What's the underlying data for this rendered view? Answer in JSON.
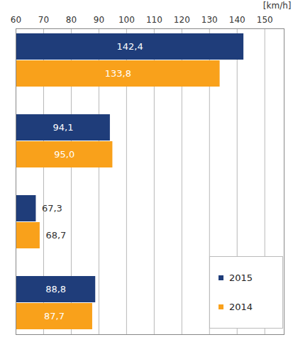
{
  "chart_data": {
    "type": "bar",
    "orientation": "horizontal",
    "categories": [
      null,
      null,
      null,
      null
    ],
    "xlabel": "[km/h]",
    "xlim": [
      60,
      157
    ],
    "xticks": [
      60,
      70,
      80,
      90,
      100,
      110,
      120,
      130,
      140,
      150
    ],
    "grid": true,
    "legend": "bottom-right",
    "data_labels": true,
    "series": [
      {
        "name": "2015",
        "color": "#1f3d7a",
        "values": [
          142.4,
          94.1,
          67.3,
          88.8
        ],
        "value_labels": [
          "142,4",
          "94,1",
          "67,3",
          "88,8"
        ]
      },
      {
        "name": "2014",
        "color": "#f9a11b",
        "values": [
          133.8,
          95.0,
          68.7,
          87.7
        ],
        "value_labels": [
          "133,8",
          "95,0",
          "68,7",
          "87,7"
        ]
      }
    ]
  }
}
